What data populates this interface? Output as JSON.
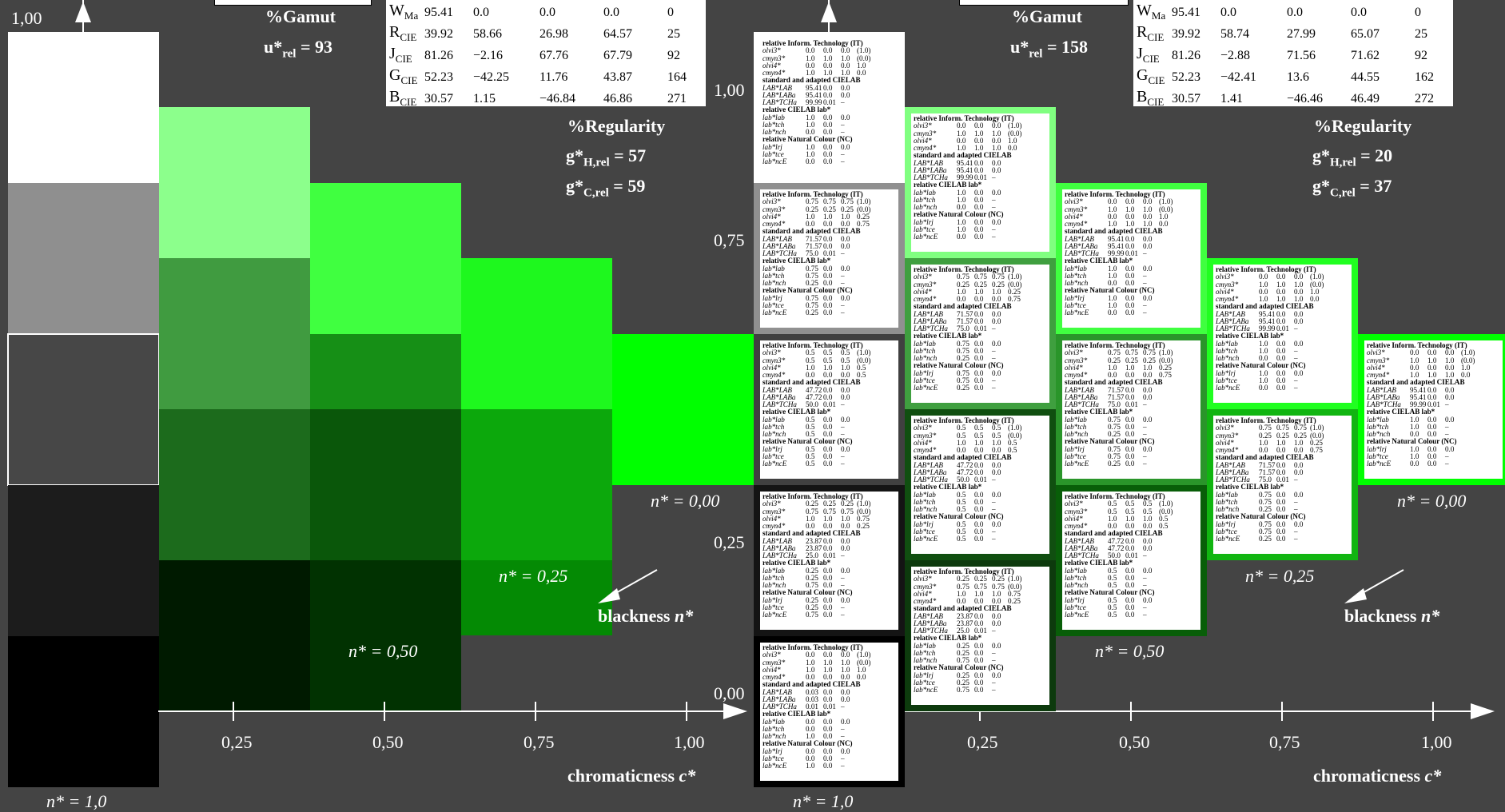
{
  "left_header": {
    "gamut_label": "%Gamut",
    "u_label": "u*",
    "u_sub": "rel",
    "u_value": "= 93",
    "regularity_label": "%Regularity",
    "gH_label": "g*",
    "gH_sub": "H,rel",
    "gH_value": "= 57",
    "gC_label": "g*",
    "gC_sub": "C,rel",
    "gC_value": "= 59",
    "table": [
      {
        "k": "W",
        "s": "Ma",
        "v": [
          "95.41",
          "0.0",
          "0.0",
          "0.0",
          "0"
        ]
      },
      {
        "k": "R",
        "s": "CIE",
        "v": [
          "39.92",
          "58.66",
          "26.98",
          "64.57",
          "25"
        ]
      },
      {
        "k": "J",
        "s": "CIE",
        "v": [
          "81.26",
          "−2.16",
          "67.76",
          "67.79",
          "92"
        ]
      },
      {
        "k": "G",
        "s": "CIE",
        "v": [
          "52.23",
          "−42.25",
          "11.76",
          "43.87",
          "164"
        ]
      },
      {
        "k": "B",
        "s": "CIE",
        "v": [
          "30.57",
          "1.15",
          "−46.84",
          "46.86",
          "271"
        ]
      }
    ]
  },
  "right_header": {
    "gamut_label": "%Gamut",
    "u_label": "u*",
    "u_sub": "rel",
    "u_value": "= 158",
    "regularity_label": "%Regularity",
    "gH_label": "g*",
    "gH_sub": "H,rel",
    "gH_value": "= 20",
    "gC_label": "g*",
    "gC_sub": "C,rel",
    "gC_value": "= 37",
    "table": [
      {
        "k": "W",
        "s": "Ma",
        "v": [
          "95.41",
          "0.0",
          "0.0",
          "0.0",
          "0"
        ]
      },
      {
        "k": "R",
        "s": "CIE",
        "v": [
          "39.92",
          "58.74",
          "27.99",
          "65.07",
          "25"
        ]
      },
      {
        "k": "J",
        "s": "CIE",
        "v": [
          "81.26",
          "−2.88",
          "71.56",
          "71.62",
          "92"
        ]
      },
      {
        "k": "G",
        "s": "CIE",
        "v": [
          "52.23",
          "−42.41",
          "13.6",
          "44.55",
          "162"
        ]
      },
      {
        "k": "B",
        "s": "CIE",
        "v": [
          "30.57",
          "1.41",
          "−46.46",
          "46.49",
          "272"
        ]
      }
    ]
  },
  "labels": {
    "y_top": "1,00",
    "y_100": "1,00",
    "y_075": "0,75",
    "y_025": "0,25",
    "y_000": "0,00",
    "x_025": "0,25",
    "x_050": "0,50",
    "x_075": "0,75",
    "x_100": "1,00",
    "n_000": "n* = 0,00",
    "n_025": "n* = 0,25",
    "n_050": "n* = 0,50",
    "n_100": "n* = 1,0",
    "blackness": "blackness",
    "blackness_var": "n*",
    "chromaticness": "chromaticness",
    "chromaticness_var": "c*"
  },
  "colors": {
    "background": "#444444",
    "left_patches": [
      [
        "#ffffff",
        "#8f8f8f",
        "#474747",
        "#1c1c1c",
        "#131313",
        "#000000"
      ],
      [
        "#8cff8c",
        "#409b40",
        "#1c6b1c",
        "#0c3f0c",
        "#001a00"
      ],
      [
        "#40ff40",
        "#168f16",
        "#0a570a",
        "#013201"
      ],
      [
        "#1ef81e",
        "#0ca80c",
        "#048a04"
      ],
      [
        "#00ff00"
      ]
    ],
    "right_frames": [
      [
        "#ffffff",
        "#909090",
        "#404040",
        "#141414",
        "#000000"
      ],
      [
        "#80ff80",
        "#3f9f3f",
        "#104f10",
        "#0d3a0d"
      ],
      [
        "#40ff40",
        "#2a952a",
        "#085e08"
      ],
      [
        "#20ff20",
        "#11b511"
      ],
      [
        "#00ff00"
      ]
    ]
  },
  "card_data": {
    "title1": "relative Inform. Technology (IT)",
    "title2": "standard and adapted CIELAB",
    "title3": "relative CIELAB lab*",
    "title4": "relative Natural Colour (NC)",
    "names1": [
      "olvi3*",
      "cmyn3*",
      "olvi4*",
      "cmyn4*"
    ],
    "names2": [
      "LAB*LAB",
      "LAB*LABa",
      "LAB*TCHa"
    ],
    "names3": [
      "lab*lab",
      "lab*tch",
      "lab*nch"
    ],
    "names4": [
      "lab*lrj",
      "lab*tce",
      "lab*ncE"
    ],
    "cards": [
      {
        "g": "0.0 0.0 0.0 (1.0)|1.0 1.0 1.0 (0.0)|0.0 0.0 0.0 1.0|1.0 1.0 1.0 0.0",
        "l": "95.41 0.0 0.0|95.41 0.0 0.0|99.99 0.01 –",
        "c": "1.0 0.0 0.0|1.0 0.0 –|0.0 0.0 –",
        "n": "1.0 0.0 0.0|1.0 0.0 –|0.0 0.0 –"
      },
      {
        "g": "0.75 0.75 0.75 (1.0)|0.25 0.25 0.25 (0.0)|1.0 1.0 1.0 0.25|0.0 0.0 0.0 0.75",
        "l": "71.57 0.0 0.0|71.57 0.0 0.0|75.0 0.01 –",
        "c": "0.75 0.0 0.0|0.75 0.0 –|0.25 0.0 –",
        "n": "0.75 0.0 0.0|0.75 0.0 –|0.25 0.0 –"
      },
      {
        "g": "0.5 0.5 0.5 (1.0)|0.5 0.5 0.5 (0.0)|1.0 1.0 1.0 0.5|0.0 0.0 0.0 0.5",
        "l": "47.72 0.0 0.0|47.72 0.0 0.0|50.0 0.01 –",
        "c": "0.5 0.0 0.0|0.5 0.0 –|0.5 0.0 –",
        "n": "0.5 0.0 0.0|0.5 0.0 –|0.5 0.0 –"
      },
      {
        "g": "0.25 0.25 0.25 (1.0)|0.75 0.75 0.75 (0.0)|1.0 1.0 1.0 0.75|0.0 0.0 0.0 0.25",
        "l": "23.87 0.0 0.0|23.87 0.0 0.0|25.0 0.01 –",
        "c": "0.25 0.0 0.0|0.25 0.0 –|0.75 0.0 –",
        "n": "0.25 0.0 0.0|0.25 0.0 –|0.75 0.0 –"
      },
      {
        "g": "0.0 0.0 0.0 (1.0)|1.0 1.0 1.0 (0.0)|1.0 1.0 1.0 1.0|0.0 0.0 0.0 0.0",
        "l": "0.03 0.0 0.0|0.03 0.0 0.0|0.01 0.01 –",
        "c": "0.0 0.0 0.0|0.0 0.0 –|1.0 0.0 –",
        "n": "0.0 0.0 0.0|0.0 0.0 –|1.0 0.0 –"
      }
    ]
  }
}
